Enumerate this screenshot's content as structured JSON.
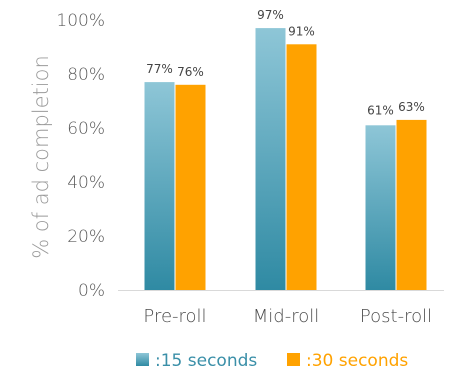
{
  "chart_data": {
    "type": "bar",
    "categories": [
      "Pre-roll",
      "Mid-roll",
      "Post-roll"
    ],
    "series": [
      {
        "name": ":15 seconds",
        "values": [
          77,
          97,
          61
        ],
        "labels": [
          "77%",
          "97%",
          "61%"
        ],
        "color": "#3a8fa8",
        "color_light": "#85c1d4"
      },
      {
        "name": ":30 seconds",
        "values": [
          76,
          91,
          63
        ],
        "labels": [
          "76%",
          "91%",
          "63%"
        ],
        "color": "#ffa200"
      }
    ],
    "ylabel": "% of ad completion",
    "xlabel": "",
    "ylim": [
      0,
      100
    ],
    "yticks": [
      0,
      20,
      40,
      60,
      80,
      100
    ],
    "ytick_labels": [
      "0%",
      "20%",
      "40%",
      "60%",
      "80%",
      "100%"
    ],
    "grid": false,
    "legend_position": "bottom"
  }
}
